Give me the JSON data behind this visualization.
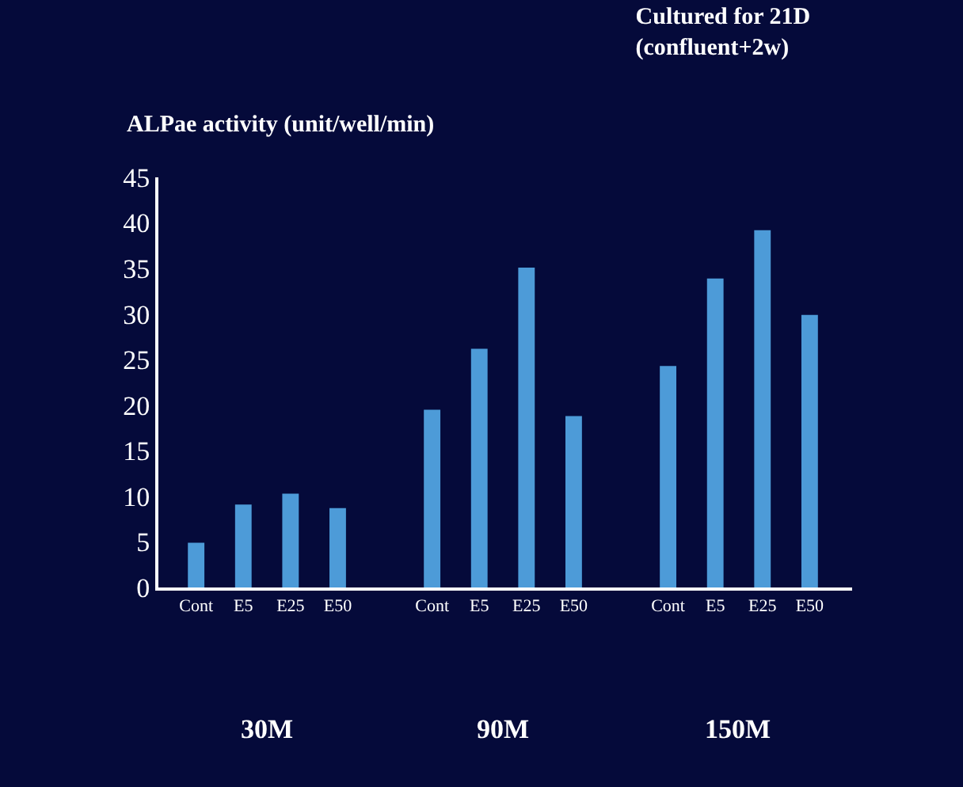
{
  "chart_data": {
    "type": "bar",
    "title": "Cultured for 21D\n(confluent+2w)",
    "ylabel": "ALPae activity (unit/well/min)",
    "categories": [
      "Cont",
      "E5",
      "E25",
      "E50",
      "Cont",
      "E5",
      "E25",
      "E50",
      "Cont",
      "E5",
      "E25",
      "E50"
    ],
    "values": [
      4.9,
      9.1,
      10.3,
      8.7,
      19.5,
      26.2,
      35.1,
      18.8,
      24.3,
      33.9,
      39.2,
      29.9
    ],
    "color": "#4d9bd8",
    "ylim": [
      0,
      45
    ],
    "yticks": [
      0,
      5,
      10,
      15,
      20,
      25,
      30,
      35,
      40,
      45
    ],
    "grid": false,
    "legend": false,
    "annotations": [
      "30M",
      "90M",
      "150M"
    ]
  }
}
